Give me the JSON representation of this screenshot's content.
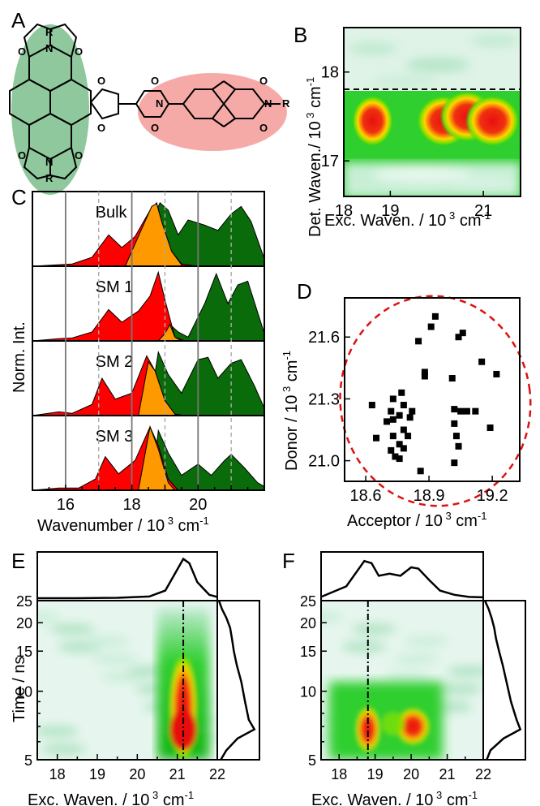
{
  "panels": {
    "A": "A",
    "B": "B",
    "C": "C",
    "D": "D",
    "E": "E",
    "F": "F"
  },
  "molecule": {
    "r_label": "R",
    "n_label": "N",
    "o_label": "O",
    "donor_color": "#7fbf8f",
    "acceptor_color": "#f4a7a7"
  },
  "colors": {
    "red": "#ff0000",
    "orange": "#ff9900",
    "green": "#0a6b0a",
    "map_low": "#e6f6ee",
    "map_mid": "#22cc22",
    "map_hot": "#ee1010",
    "dashed_ellipse": "#dd1111"
  },
  "chart_data": [
    {
      "id": "B",
      "type": "heatmap",
      "xlabel": "Exc. Waven. / 10 3 cm-1",
      "ylabel": "Det. Waven./ 10 3 cm-1",
      "xticks": [
        "18",
        "19",
        "21"
      ],
      "yticks": [
        "17",
        "18"
      ],
      "xlim": [
        18,
        21.8
      ],
      "ylim": [
        16.6,
        18.5
      ],
      "dashed_line_y": 17.92,
      "hotspots": [
        {
          "x": 18.62,
          "y": 17.45,
          "level": "high"
        },
        {
          "x": 20.15,
          "y": 17.45,
          "level": "high"
        },
        {
          "x": 20.65,
          "y": 17.5,
          "level": "high"
        },
        {
          "x": 21.2,
          "y": 17.45,
          "level": "high"
        }
      ]
    },
    {
      "id": "C",
      "type": "area",
      "xlabel": "Wavenumber / 10 3 cm-1",
      "ylabel": "Norm. Int.",
      "xticks": [
        "16",
        "18",
        "20"
      ],
      "xlim": [
        15,
        22
      ],
      "solid_lines": [
        16,
        18,
        20
      ],
      "dashed_lines": [
        17,
        19,
        21
      ],
      "sub_panels": [
        {
          "label": "Bulk",
          "red": [
            [
              15,
              0
            ],
            [
              15.8,
              0.02
            ],
            [
              16.2,
              0.03
            ],
            [
              16.8,
              0.12
            ],
            [
              17.3,
              0.42
            ],
            [
              17.7,
              0.25
            ],
            [
              18.1,
              0.4
            ],
            [
              18.55,
              0.75
            ],
            [
              18.75,
              0.85
            ],
            [
              18.9,
              0.6
            ],
            [
              19.2,
              0.2
            ],
            [
              19.5,
              0.03
            ],
            [
              20,
              0
            ]
          ],
          "orange": [
            [
              17.8,
              0
            ],
            [
              18.2,
              0.4
            ],
            [
              18.6,
              0.8
            ],
            [
              18.75,
              0.84
            ],
            [
              18.9,
              0.6
            ],
            [
              19.2,
              0.2
            ],
            [
              19.5,
              0.02
            ]
          ],
          "green": [
            [
              18,
              0
            ],
            [
              18.5,
              0.5
            ],
            [
              18.85,
              0.85
            ],
            [
              19.1,
              0.75
            ],
            [
              19.4,
              0.42
            ],
            [
              19.7,
              0.62
            ],
            [
              20.2,
              0.55
            ],
            [
              20.6,
              0.48
            ],
            [
              21.0,
              0.7
            ],
            [
              21.3,
              0.8
            ],
            [
              21.6,
              0.6
            ],
            [
              22,
              0.1
            ]
          ]
        },
        {
          "label": "SM 1",
          "red": [
            [
              15,
              0
            ],
            [
              15.8,
              0.03
            ],
            [
              16.2,
              0.04
            ],
            [
              16.8,
              0.12
            ],
            [
              17.3,
              0.42
            ],
            [
              17.7,
              0.25
            ],
            [
              18.2,
              0.4
            ],
            [
              18.55,
              0.6
            ],
            [
              18.8,
              0.92
            ],
            [
              19.0,
              0.55
            ],
            [
              19.3,
              0.05
            ],
            [
              19.6,
              0
            ]
          ],
          "orange": [
            [
              18.8,
              0
            ],
            [
              19.0,
              0.1
            ],
            [
              19.15,
              0.22
            ],
            [
              19.3,
              0.05
            ],
            [
              19.5,
              0
            ]
          ],
          "green": [
            [
              19,
              0
            ],
            [
              19.2,
              0.2
            ],
            [
              19.4,
              0.12
            ],
            [
              19.7,
              0.05
            ],
            [
              20.2,
              0.5
            ],
            [
              20.55,
              0.9
            ],
            [
              20.9,
              0.5
            ],
            [
              21.2,
              0.75
            ],
            [
              21.5,
              0.8
            ],
            [
              22,
              0.1
            ]
          ]
        },
        {
          "label": "SM 2",
          "red": [
            [
              15,
              0
            ],
            [
              15.8,
              0.05
            ],
            [
              16.2,
              0.03
            ],
            [
              16.8,
              0.15
            ],
            [
              17.1,
              0.5
            ],
            [
              17.5,
              0.22
            ],
            [
              18.0,
              0.3
            ],
            [
              18.45,
              0.8
            ],
            [
              18.7,
              0.6
            ],
            [
              19.0,
              0.2
            ],
            [
              19.3,
              0.02
            ],
            [
              19.6,
              0
            ]
          ],
          "orange": [
            [
              18.2,
              0
            ],
            [
              18.5,
              0.72
            ],
            [
              18.7,
              0.6
            ],
            [
              19.0,
              0.2
            ],
            [
              19.3,
              0.02
            ]
          ],
          "green": [
            [
              18.5,
              0
            ],
            [
              18.8,
              0.85
            ],
            [
              19.1,
              0.55
            ],
            [
              19.5,
              0.3
            ],
            [
              20.0,
              0.75
            ],
            [
              20.3,
              0.78
            ],
            [
              20.6,
              0.5
            ],
            [
              21.0,
              0.7
            ],
            [
              21.3,
              0.75
            ],
            [
              21.7,
              0.4
            ],
            [
              22,
              0.1
            ]
          ]
        },
        {
          "label": "SM 3",
          "red": [
            [
              15,
              0
            ],
            [
              15.8,
              0.03
            ],
            [
              16.4,
              0.03
            ],
            [
              16.9,
              0.15
            ],
            [
              17.2,
              0.45
            ],
            [
              17.6,
              0.22
            ],
            [
              18.1,
              0.4
            ],
            [
              18.55,
              0.85
            ],
            [
              18.8,
              0.6
            ],
            [
              19.1,
              0.15
            ],
            [
              19.4,
              0
            ]
          ],
          "orange": [
            [
              18.2,
              0
            ],
            [
              18.55,
              0.85
            ],
            [
              18.8,
              0.55
            ],
            [
              19.1,
              0.1
            ],
            [
              19.3,
              0
            ]
          ],
          "green": [
            [
              18.6,
              0
            ],
            [
              18.8,
              0.8
            ],
            [
              19.1,
              0.5
            ],
            [
              19.5,
              0.2
            ],
            [
              20.0,
              0.35
            ],
            [
              20.4,
              0.2
            ],
            [
              20.8,
              0.4
            ],
            [
              21.0,
              0.48
            ],
            [
              21.4,
              0.3
            ],
            [
              21.8,
              0.1
            ],
            [
              22,
              0.05
            ]
          ]
        }
      ]
    },
    {
      "id": "D",
      "type": "scatter",
      "xlabel": "Acceptor / 10 3 cm-1",
      "ylabel": "Donor / 10 3 cm-1",
      "xticks": [
        "18.6",
        "18.9",
        "19.2"
      ],
      "yticks": [
        "21.0",
        "21.3",
        "21.6"
      ],
      "xlim": [
        18.5,
        19.33
      ],
      "ylim": [
        20.9,
        21.79
      ],
      "points": [
        [
          18.93,
          21.7
        ],
        [
          18.91,
          21.65
        ],
        [
          18.85,
          21.58
        ],
        [
          19.06,
          21.62
        ],
        [
          19.04,
          21.6
        ],
        [
          18.88,
          21.43
        ],
        [
          18.88,
          21.41
        ],
        [
          19.15,
          21.48
        ],
        [
          19.22,
          21.42
        ],
        [
          19.01,
          21.4
        ],
        [
          18.77,
          21.33
        ],
        [
          18.63,
          21.27
        ],
        [
          18.73,
          21.3
        ],
        [
          18.78,
          21.27
        ],
        [
          18.72,
          21.24
        ],
        [
          18.82,
          21.24
        ],
        [
          19.02,
          21.25
        ],
        [
          19.05,
          21.24
        ],
        [
          19.08,
          21.24
        ],
        [
          19.12,
          21.24
        ],
        [
          18.76,
          21.22
        ],
        [
          18.73,
          21.2
        ],
        [
          18.81,
          21.21
        ],
        [
          18.7,
          21.19
        ],
        [
          19.02,
          21.18
        ],
        [
          18.78,
          21.15
        ],
        [
          18.65,
          21.11
        ],
        [
          18.73,
          21.12
        ],
        [
          18.8,
          21.12
        ],
        [
          19.19,
          21.16
        ],
        [
          18.76,
          21.08
        ],
        [
          19.03,
          21.12
        ],
        [
          18.78,
          21.06
        ],
        [
          18.72,
          21.05
        ],
        [
          19.04,
          21.07
        ],
        [
          18.74,
          21.02
        ],
        [
          18.76,
          21.01
        ],
        [
          19.02,
          20.99
        ],
        [
          18.86,
          20.95
        ]
      ],
      "ellipse": {
        "cx": 18.93,
        "cy": 21.29,
        "rx": 0.45,
        "ry": 0.51
      }
    },
    {
      "id": "E",
      "type": "heatmap",
      "xlabel": "Exc. Waven. / 10 3 cm-1",
      "ylabel": "Time / ns",
      "xticks": [
        "18",
        "19",
        "20",
        "21",
        "22"
      ],
      "yticks": [
        "5",
        "10",
        "15",
        "20",
        "25"
      ],
      "xlim": [
        17.5,
        22
      ],
      "ylim": [
        5,
        25
      ],
      "line_x": 21.15,
      "top_profile": [
        [
          17.5,
          0.02
        ],
        [
          18.5,
          0.02
        ],
        [
          19.5,
          0.03
        ],
        [
          20.3,
          0.06
        ],
        [
          20.7,
          0.2
        ],
        [
          21.0,
          0.7
        ],
        [
          21.15,
          0.95
        ],
        [
          21.3,
          0.85
        ],
        [
          21.5,
          0.4
        ],
        [
          21.8,
          0.1
        ],
        [
          22,
          0.05
        ]
      ],
      "right_profile": [
        [
          25,
          0.0
        ],
        [
          23,
          0.08
        ],
        [
          21,
          0.2
        ],
        [
          19,
          0.3
        ],
        [
          17,
          0.35
        ],
        [
          15,
          0.4
        ],
        [
          13,
          0.48
        ],
        [
          11,
          0.6
        ],
        [
          9,
          0.7
        ],
        [
          7.5,
          0.8
        ],
        [
          6.8,
          0.95
        ],
        [
          6.2,
          0.5
        ],
        [
          5.5,
          0.2
        ],
        [
          5,
          0.05
        ]
      ]
    },
    {
      "id": "F",
      "type": "heatmap",
      "xlabel": "Exc. Waven. / 10 3 cm-1",
      "ylabel": "",
      "xticks": [
        "18",
        "19",
        "20",
        "21",
        "22"
      ],
      "yticks": [
        "5",
        "10",
        "15",
        "20",
        "25"
      ],
      "xlim": [
        17.5,
        22
      ],
      "ylim": [
        5,
        25
      ],
      "line_x": 18.8,
      "top_profile": [
        [
          17.5,
          0.05
        ],
        [
          18.2,
          0.3
        ],
        [
          18.7,
          0.9
        ],
        [
          18.9,
          0.85
        ],
        [
          19.1,
          0.55
        ],
        [
          19.4,
          0.6
        ],
        [
          19.7,
          0.55
        ],
        [
          20.0,
          0.75
        ],
        [
          20.2,
          0.72
        ],
        [
          20.5,
          0.45
        ],
        [
          20.8,
          0.2
        ],
        [
          21.2,
          0.1
        ],
        [
          21.6,
          0.05
        ],
        [
          22,
          0.04
        ]
      ],
      "right_profile": [
        [
          25,
          0.0
        ],
        [
          23,
          0.1
        ],
        [
          21,
          0.18
        ],
        [
          19,
          0.25
        ],
        [
          17,
          0.3
        ],
        [
          15,
          0.38
        ],
        [
          13,
          0.48
        ],
        [
          11,
          0.58
        ],
        [
          9,
          0.7
        ],
        [
          7.5,
          0.85
        ],
        [
          6.8,
          0.95
        ],
        [
          6.2,
          0.5
        ],
        [
          5.5,
          0.15
        ],
        [
          5,
          0.05
        ]
      ]
    }
  ]
}
